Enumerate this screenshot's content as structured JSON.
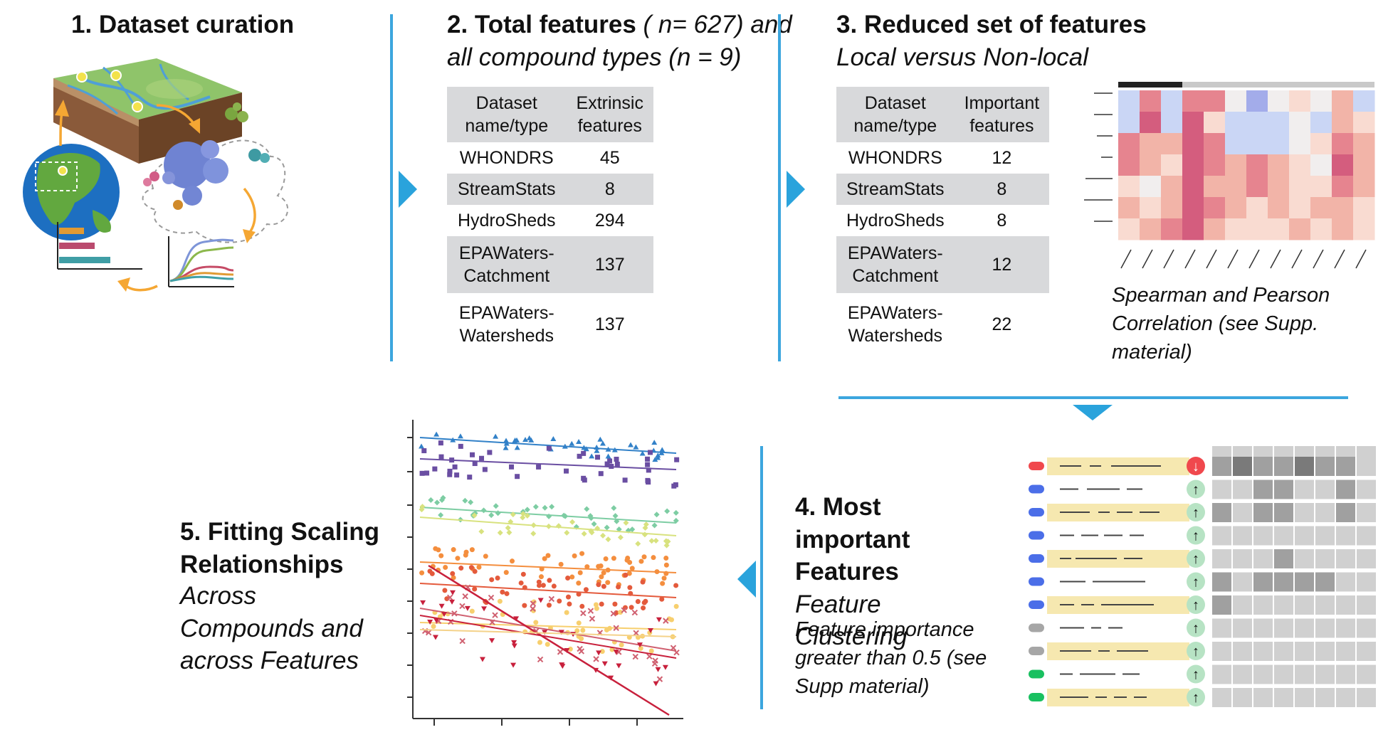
{
  "panel1": {
    "title": "1. Dataset curation"
  },
  "panel2": {
    "title_bold": "2. Total features",
    "title_italic_1": " ( n= 627)",
    "title_italic_2": " and",
    "title_line2": "all compound types (n = 9)",
    "col1": "Dataset name/type",
    "col2": "Extrinsic features",
    "rows": [
      {
        "name": "WHONDRS",
        "value": "45"
      },
      {
        "name": "StreamStats",
        "value": "8"
      },
      {
        "name": "HydroSheds",
        "value": "294"
      },
      {
        "name": "EPAWaters-Catchment",
        "value": "137"
      },
      {
        "name": "EPAWaters-Watersheds",
        "value": "137"
      }
    ]
  },
  "panel3": {
    "title": "3. Reduced set of features",
    "subtitle": "Local versus Non-local",
    "col1": "Dataset name/type",
    "col2": "Important features",
    "rows": [
      {
        "name": "WHONDRS",
        "value": "12"
      },
      {
        "name": "StreamStats",
        "value": "8"
      },
      {
        "name": "HydroSheds",
        "value": "8"
      },
      {
        "name": "EPAWaters-Catchment",
        "value": "12"
      },
      {
        "name": "EPAWaters-Watersheds",
        "value": "22"
      }
    ],
    "heatmap_note": "Spearman and Pearson Correlation (see Supp. material)",
    "heatmap_colors": [
      "#d45d7e",
      "#e6848f",
      "#f2b4a8",
      "#f9dbd1",
      "#f1eeee",
      "#cad6f5",
      "#a3acea",
      "#8591dd"
    ]
  },
  "panel4": {
    "title_bold": "4. Most important Features",
    "title_italic": "Feature Clustering",
    "note": "Feature importance greater than 0.5 (see Supp material)",
    "bar_color": "#f6e8b0",
    "down_color": "#f0484d",
    "up_color": "#b7e3c4",
    "dot_colors": [
      "#f0484d",
      "#4b6ee8",
      "#4b6ee8",
      "#4b6ee8",
      "#4b6ee8",
      "#4b6ee8",
      "#4b6ee8",
      "#a6a6a6",
      "#a6a6a6",
      "#19c060",
      "#19c060"
    ],
    "arrow_down": "↓",
    "arrow_up": "↑"
  },
  "panel5": {
    "title": "5. Fitting Scaling Relationships",
    "subtitle": "Across Compounds and across Features",
    "series_colors": [
      "#3281c8",
      "#6a4ea2",
      "#7dcda3",
      "#d8e27f",
      "#f7cf6e",
      "#f48e3e",
      "#e45a3c",
      "#c8203c",
      "#d06070",
      "#f4d28a"
    ]
  },
  "flow_arrow_color": "#2aa3dc",
  "orange_arrow_color": "#f5a733"
}
